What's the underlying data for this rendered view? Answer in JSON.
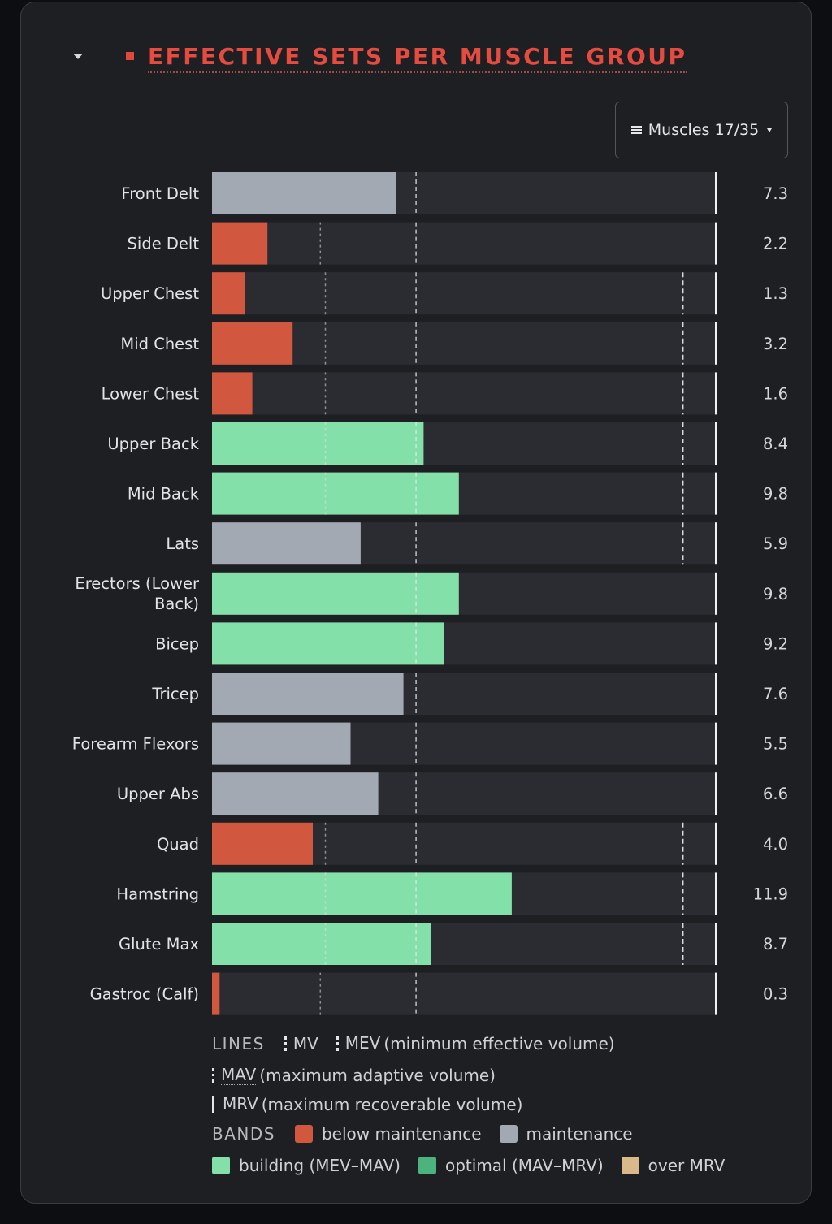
{
  "header": {
    "title": "EFFECTIVE SETS PER MUSCLE GROUP"
  },
  "filter": {
    "label": "Muscles 17/35"
  },
  "colors": {
    "below_maintenance": "#d1583f",
    "maintenance": "#a3a9b3",
    "building": "#83e0a9",
    "optimal": "#4db37c",
    "over_mrv": "#d9b98a",
    "track": "#2b2c31"
  },
  "chart_data": {
    "type": "bar",
    "orientation": "horizontal",
    "xlim": [
      0,
      20
    ],
    "categories": [
      "Front Delt",
      "Side Delt",
      "Upper Chest",
      "Mid Chest",
      "Lower Chest",
      "Upper Back",
      "Mid Back",
      "Lats",
      "Erectors (Lower Back)",
      "Bicep",
      "Tricep",
      "Forearm Flexors",
      "Upper Abs",
      "Quad",
      "Hamstring",
      "Glute Max",
      "Gastroc (Calf)"
    ],
    "values": [
      7.3,
      2.2,
      1.3,
      3.2,
      1.6,
      8.4,
      9.8,
      5.9,
      9.8,
      9.2,
      7.6,
      5.5,
      6.6,
      4.0,
      11.9,
      8.7,
      0.3
    ],
    "value_labels": [
      "7.3",
      "2.2",
      "1.3",
      "3.2",
      "1.6",
      "8.4",
      "9.8",
      "5.9",
      "9.8",
      "9.2",
      "7.6",
      "5.5",
      "6.6",
      "4.0",
      "11.9",
      "8.7",
      "0.3"
    ],
    "bands": [
      "maintenance",
      "below_maintenance",
      "below_maintenance",
      "below_maintenance",
      "below_maintenance",
      "building",
      "building",
      "maintenance",
      "building",
      "building",
      "maintenance",
      "maintenance",
      "maintenance",
      "below_maintenance",
      "building",
      "building",
      "below_maintenance"
    ],
    "mv": [
      null,
      4.3,
      4.5,
      4.5,
      4.5,
      4.5,
      4.5,
      null,
      null,
      null,
      null,
      null,
      null,
      4.5,
      4.5,
      4.5,
      4.3
    ],
    "mev": [
      8.1,
      8.1,
      8.1,
      8.1,
      8.1,
      8.1,
      8.1,
      8.1,
      8.1,
      8.1,
      8.1,
      8.1,
      8.1,
      8.1,
      8.1,
      8.1,
      8.1
    ],
    "mav": [
      null,
      null,
      18.7,
      18.7,
      18.7,
      18.7,
      18.7,
      18.7,
      null,
      null,
      null,
      null,
      null,
      18.7,
      18.7,
      18.7,
      null
    ],
    "mrv": [
      20,
      20,
      20,
      20,
      20,
      20,
      20,
      20,
      20,
      20,
      20,
      20,
      20,
      20,
      20,
      20,
      20
    ]
  },
  "legend": {
    "lines_label": "LINES",
    "mv_abbr": "MV",
    "mev_abbr": "MEV",
    "mev_desc": "(minimum effective volume)",
    "mav_abbr": "MAV",
    "mav_desc": "(maximum adaptive volume)",
    "mrv_abbr": "MRV",
    "mrv_desc": "(maximum recoverable volume)",
    "bands_label": "BANDS",
    "below_maintenance": "below maintenance",
    "maintenance": "maintenance",
    "building": "building (MEV–MAV)",
    "optimal": "optimal (MAV–MRV)",
    "over_mrv": "over MRV"
  }
}
